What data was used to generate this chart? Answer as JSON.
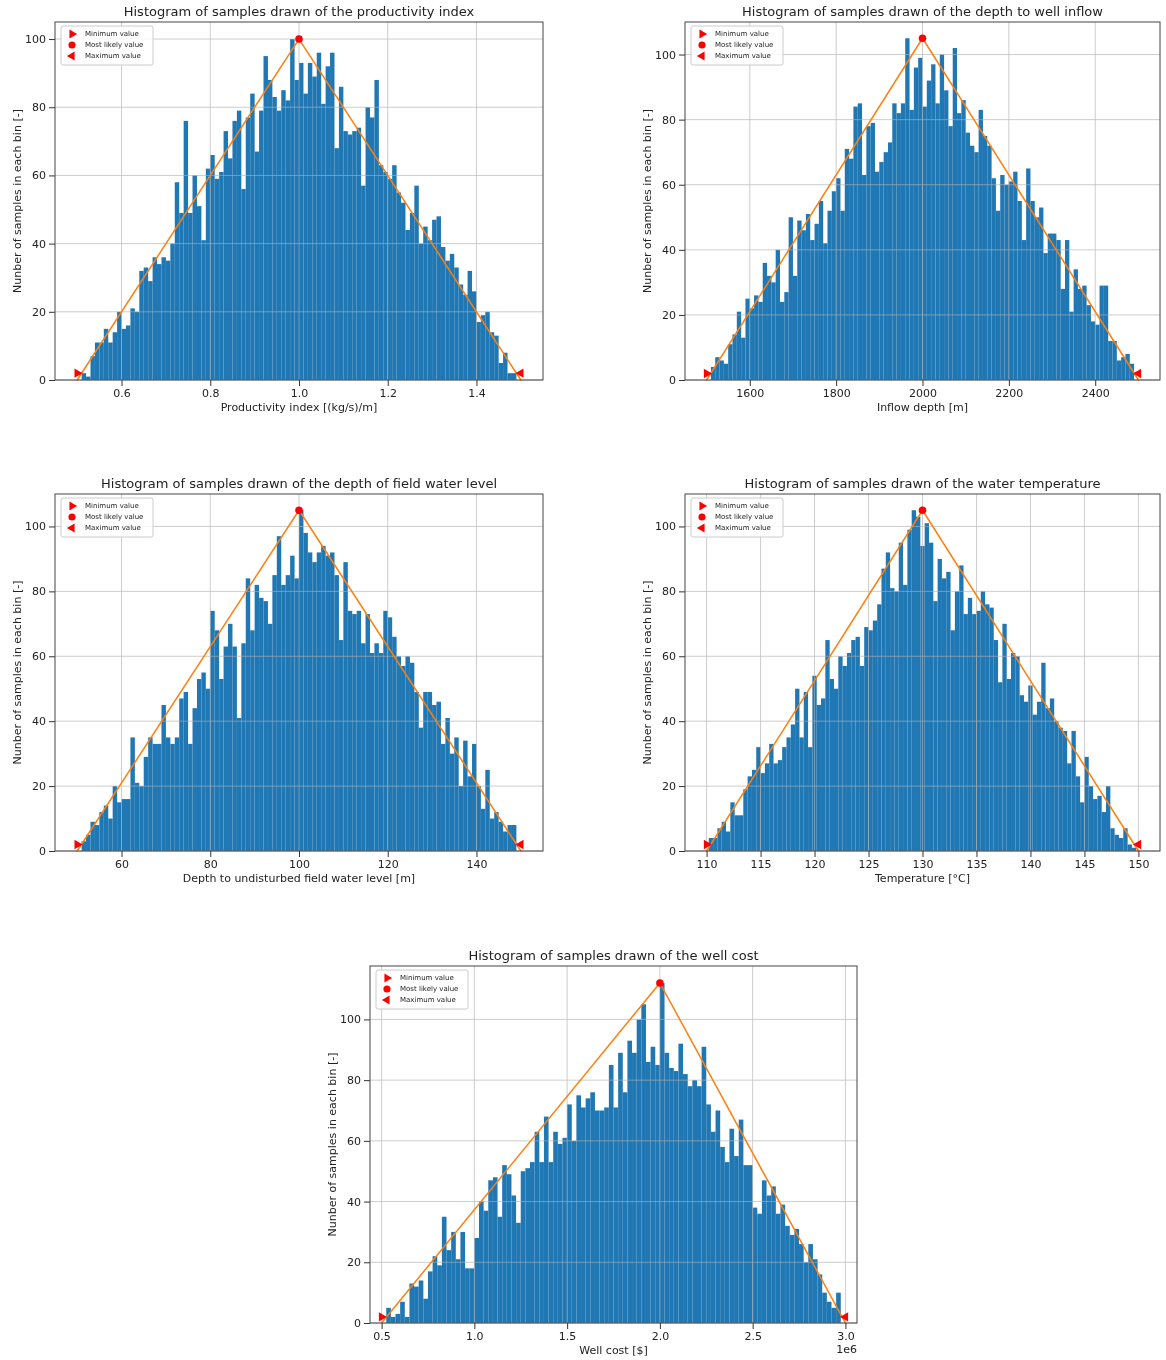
{
  "chart_data": [
    {
      "type": "histogram",
      "title": "Histogram of samples drawn of the productivity index",
      "xlabel": "Productivity index [(kg/s)/m]",
      "ylabel": "Nunber of samples in each bin [-]",
      "xlim": [
        0.45,
        1.55
      ],
      "ylim": [
        0,
        105
      ],
      "xticks": [
        0.6,
        0.8,
        {
          "value": 1,
          "label": "1.0"
        },
        1.2,
        1.4
      ],
      "yticks": [
        0,
        20,
        40,
        60,
        80,
        100
      ],
      "grid": true,
      "legend": "top left",
      "color": "#1f77b4",
      "bins": [
        0.51,
        0.52,
        0.53,
        0.54,
        0.55,
        0.56,
        0.57,
        0.58,
        0.59,
        0.6,
        0.61,
        0.62,
        0.63,
        0.64,
        0.65,
        0.66,
        0.67,
        0.68,
        0.69,
        0.7,
        0.71,
        0.72,
        0.73,
        0.74,
        0.75,
        0.76,
        0.77,
        0.78,
        0.79,
        0.8,
        0.81,
        0.82,
        0.83,
        0.84,
        0.85,
        0.86,
        0.87,
        0.88,
        0.89,
        0.9,
        0.91,
        0.92,
        0.93,
        0.94,
        0.95,
        0.96,
        0.97,
        0.98,
        0.99,
        1,
        1.01,
        1.02,
        1.03,
        1.04,
        1.05,
        1.06,
        1.07,
        1.08,
        1.09,
        1.1,
        1.11,
        1.12,
        1.13,
        1.14,
        1.15,
        1.16,
        1.17,
        1.18,
        1.19,
        1.2,
        1.21,
        1.22,
        1.23,
        1.24,
        1.25,
        1.26,
        1.27,
        1.28,
        1.29,
        1.3,
        1.31,
        1.32,
        1.33,
        1.34,
        1.35,
        1.36,
        1.37,
        1.38,
        1.39,
        1.4,
        1.41,
        1.42,
        1.43,
        1.44,
        1.45,
        1.46,
        1.47,
        1.48,
        1.49
      ],
      "values": [
        2,
        1,
        7,
        11,
        11,
        15,
        11,
        14,
        20,
        15,
        16,
        21,
        20,
        32,
        33,
        29,
        36,
        34,
        36,
        35,
        40,
        58,
        49,
        76,
        49,
        60,
        51,
        41,
        62,
        66,
        59,
        61,
        73,
        65,
        76,
        79,
        56,
        77,
        84,
        67,
        79,
        95,
        88,
        83,
        79,
        85,
        82,
        100,
        88,
        93,
        84,
        93,
        89,
        96,
        81,
        92,
        96,
        68,
        86,
        73,
        72,
        73,
        74,
        57,
        80,
        77,
        88,
        63,
        61,
        59,
        63,
        55,
        52,
        44,
        49,
        57,
        40,
        45,
        41,
        47,
        48,
        39,
        35,
        37,
        33,
        28,
        25,
        32,
        26,
        17,
        19,
        20,
        14,
        13,
        5,
        8,
        2,
        2
      ],
      "series": [
        {
          "type": "line",
          "color": "#ff7f0e",
          "x": [
            0.5,
            1,
            1.5
          ],
          "values": [
            0,
            100,
            0
          ]
        },
        {
          "type": "scatter",
          "name": "Minimum value",
          "color": "#ff0000",
          "marker": "triangle-right",
          "x": [
            0.5
          ],
          "values": [
            2
          ]
        },
        {
          "type": "scatter",
          "name": "Most likely value",
          "color": "#ff0000",
          "marker": "circle",
          "x": [
            1
          ],
          "values": [
            100
          ]
        },
        {
          "type": "scatter",
          "name": "Maximum value",
          "color": "#ff0000",
          "marker": "triangle-left",
          "x": [
            1.5
          ],
          "values": [
            2
          ]
        }
      ]
    },
    {
      "type": "histogram",
      "title": "Histogram of samples drawn of the depth to well inflow",
      "xlabel": "Inflow depth [m]",
      "ylabel": "Nunber of samples in each bin [-]",
      "xlim": [
        1450,
        2550
      ],
      "ylim": [
        0,
        110
      ],
      "xticks": [
        1600,
        1800,
        2000,
        2200,
        2400
      ],
      "yticks": [
        0,
        20,
        40,
        60,
        80,
        100
      ],
      "grid": true,
      "legend": "top left",
      "color": "#1f77b4",
      "bins": [
        1510,
        1520,
        1530,
        1540,
        1550,
        1560,
        1570,
        1580,
        1590,
        1600,
        1610,
        1620,
        1630,
        1640,
        1650,
        1660,
        1670,
        1680,
        1690,
        1700,
        1710,
        1720,
        1730,
        1740,
        1750,
        1760,
        1770,
        1780,
        1790,
        1800,
        1810,
        1820,
        1830,
        1840,
        1850,
        1860,
        1870,
        1880,
        1890,
        1900,
        1910,
        1920,
        1930,
        1940,
        1950,
        1960,
        1970,
        1980,
        1990,
        2000,
        2010,
        2020,
        2030,
        2040,
        2050,
        2060,
        2070,
        2080,
        2090,
        2100,
        2110,
        2120,
        2130,
        2140,
        2150,
        2160,
        2170,
        2180,
        2190,
        2200,
        2210,
        2220,
        2230,
        2240,
        2250,
        2260,
        2270,
        2280,
        2290,
        2300,
        2310,
        2320,
        2330,
        2340,
        2350,
        2360,
        2370,
        2380,
        2390,
        2400,
        2410,
        2420,
        2430,
        2440,
        2450,
        2460,
        2470,
        2480,
        2490
      ],
      "values": [
        4,
        7,
        6,
        5,
        11,
        14,
        21,
        13,
        25,
        22,
        26,
        24,
        36,
        32,
        30,
        40,
        24,
        27,
        50,
        32,
        49,
        46,
        51,
        43,
        48,
        55,
        42,
        52,
        58,
        62,
        52,
        71,
        68,
        84,
        85,
        63,
        78,
        79,
        64,
        67,
        70,
        73,
        85,
        82,
        85,
        105,
        83,
        96,
        99,
        84,
        92,
        97,
        85,
        100,
        89,
        78,
        102,
        82,
        86,
        76,
        72,
        70,
        83,
        75,
        72,
        62,
        52,
        63,
        60,
        61,
        64,
        55,
        43,
        65,
        55,
        50,
        53,
        39,
        45,
        45,
        43,
        28,
        43,
        21,
        34,
        28,
        29,
        23,
        18,
        17,
        29,
        29,
        12,
        12,
        6,
        7,
        8,
        5
      ],
      "series": [
        {
          "type": "line",
          "color": "#ff7f0e",
          "x": [
            1500,
            2000,
            2500
          ],
          "values": [
            0,
            105,
            0
          ]
        },
        {
          "type": "scatter",
          "name": "Minimum value",
          "color": "#ff0000",
          "marker": "triangle-right",
          "x": [
            1500
          ],
          "values": [
            2
          ]
        },
        {
          "type": "scatter",
          "name": "Most likely value",
          "color": "#ff0000",
          "marker": "circle",
          "x": [
            2000
          ],
          "values": [
            105
          ]
        },
        {
          "type": "scatter",
          "name": "Maximum value",
          "color": "#ff0000",
          "marker": "triangle-left",
          "x": [
            2500
          ],
          "values": [
            2
          ]
        }
      ]
    },
    {
      "type": "histogram",
      "title": "Histogram of samples drawn of the depth of field water level",
      "xlabel": "Depth to undisturbed field water level [m]",
      "ylabel": "Nunber of samples in each bin [-]",
      "xlim": [
        45,
        155
      ],
      "ylim": [
        0,
        110
      ],
      "xticks": [
        60,
        80,
        100,
        120,
        140
      ],
      "yticks": [
        0,
        20,
        40,
        60,
        80,
        100
      ],
      "grid": true,
      "legend": "top left",
      "color": "#1f77b4",
      "bins": [
        51,
        52,
        53,
        54,
        55,
        56,
        57,
        58,
        59,
        60,
        61,
        62,
        63,
        64,
        65,
        66,
        67,
        68,
        69,
        70,
        71,
        72,
        73,
        74,
        75,
        76,
        77,
        78,
        79,
        80,
        81,
        82,
        83,
        84,
        85,
        86,
        87,
        88,
        89,
        90,
        91,
        92,
        93,
        94,
        95,
        96,
        97,
        98,
        99,
        100,
        101,
        102,
        103,
        104,
        105,
        106,
        107,
        108,
        109,
        110,
        111,
        112,
        113,
        114,
        115,
        116,
        117,
        118,
        119,
        120,
        121,
        122,
        123,
        124,
        125,
        126,
        127,
        128,
        129,
        130,
        131,
        132,
        133,
        134,
        135,
        136,
        137,
        138,
        139,
        140,
        141,
        142,
        143,
        144,
        145,
        146,
        147,
        148,
        149
      ],
      "values": [
        3,
        5,
        9,
        8,
        12,
        14,
        10,
        20,
        15,
        16,
        16,
        35,
        21,
        20,
        29,
        35,
        33,
        33,
        45,
        35,
        33,
        35,
        47,
        49,
        33,
        44,
        53,
        55,
        50,
        74,
        68,
        53,
        63,
        70,
        63,
        41,
        64,
        84,
        68,
        82,
        78,
        77,
        70,
        85,
        97,
        82,
        85,
        91,
        84,
        105,
        98,
        92,
        89,
        92,
        94,
        91,
        92,
        85,
        65,
        89,
        74,
        73,
        74,
        64,
        73,
        61,
        64,
        61,
        74,
        72,
        66,
        60,
        57,
        60,
        58,
        49,
        38,
        49,
        49,
        45,
        46,
        33,
        41,
        30,
        35,
        20,
        34,
        23,
        33,
        20,
        13,
        25,
        10,
        12,
        9,
        6,
        8,
        8
      ],
      "series": [
        {
          "type": "line",
          "color": "#ff7f0e",
          "x": [
            50,
            100,
            150
          ],
          "values": [
            0,
            105,
            0
          ]
        },
        {
          "type": "scatter",
          "name": "Minimum value",
          "color": "#ff0000",
          "marker": "triangle-right",
          "x": [
            50
          ],
          "values": [
            2
          ]
        },
        {
          "type": "scatter",
          "name": "Most likely value",
          "color": "#ff0000",
          "marker": "circle",
          "x": [
            100
          ],
          "values": [
            105
          ]
        },
        {
          "type": "scatter",
          "name": "Maximum value",
          "color": "#ff0000",
          "marker": "triangle-left",
          "x": [
            150
          ],
          "values": [
            2
          ]
        }
      ]
    },
    {
      "type": "histogram",
      "title": "Histogram of samples drawn of the water temperature",
      "xlabel": "Temperature [°C]",
      "ylabel": "Nunber of samples in each bin [-]",
      "xlim": [
        108,
        152
      ],
      "ylim": [
        0,
        110
      ],
      "xticks": [
        110,
        115,
        120,
        125,
        130,
        135,
        140,
        145,
        150
      ],
      "yticks": [
        0,
        20,
        40,
        60,
        80,
        100
      ],
      "grid": true,
      "legend": "top left",
      "color": "#1f77b4",
      "bins": [
        110.2,
        110.6,
        111,
        111.4,
        111.8,
        112.2,
        112.6,
        113,
        113.4,
        113.8,
        114.2,
        114.6,
        115,
        115.4,
        115.8,
        116.2,
        116.6,
        117,
        117.4,
        117.8,
        118.2,
        118.6,
        119,
        119.4,
        119.8,
        120.2,
        120.6,
        121,
        121.4,
        121.8,
        122.2,
        122.6,
        123,
        123.4,
        123.8,
        124.2,
        124.6,
        125,
        125.4,
        125.8,
        126.2,
        126.6,
        127,
        127.4,
        127.8,
        128.2,
        128.6,
        129,
        129.4,
        129.8,
        130.2,
        130.6,
        131,
        131.4,
        131.8,
        132.2,
        132.6,
        133,
        133.4,
        133.8,
        134.2,
        134.6,
        135,
        135.4,
        135.8,
        136.2,
        136.6,
        137,
        137.4,
        137.8,
        138.2,
        138.6,
        139,
        139.4,
        139.8,
        140.2,
        140.6,
        141,
        141.4,
        141.8,
        142.2,
        142.6,
        143,
        143.4,
        143.8,
        144.2,
        144.6,
        145,
        145.4,
        145.8,
        146.2,
        146.6,
        147,
        147.4,
        147.8,
        148.2,
        148.6,
        149,
        149.4,
        149.8
      ],
      "values": [
        4,
        4,
        7,
        9,
        6,
        15,
        11,
        11,
        19,
        23,
        25,
        32,
        24,
        27,
        33,
        27,
        28,
        32,
        35,
        39,
        50,
        35,
        49,
        32,
        54,
        45,
        47,
        65,
        53,
        50,
        60,
        57,
        61,
        65,
        66,
        57,
        69,
        68,
        71,
        76,
        87,
        92,
        81,
        80,
        95,
        82,
        99,
        105,
        103,
        94,
        101,
        95,
        77,
        90,
        84,
        86,
        68,
        80,
        88,
        73,
        78,
        73,
        74,
        80,
        76,
        75,
        65,
        52,
        70,
        53,
        61,
        60,
        48,
        46,
        51,
        42,
        46,
        58,
        44,
        47,
        40,
        38,
        37,
        27,
        37,
        23,
        15,
        29,
        20,
        16,
        17,
        12,
        20,
        7,
        5,
        4,
        7,
        2,
        1
      ],
      "series": [
        {
          "type": "line",
          "color": "#ff7f0e",
          "x": [
            110,
            130,
            150
          ],
          "values": [
            0,
            105,
            0
          ]
        },
        {
          "type": "scatter",
          "name": "Minimum value",
          "color": "#ff0000",
          "marker": "triangle-right",
          "x": [
            110
          ],
          "values": [
            2
          ]
        },
        {
          "type": "scatter",
          "name": "Most likely value",
          "color": "#ff0000",
          "marker": "circle",
          "x": [
            130
          ],
          "values": [
            105
          ]
        },
        {
          "type": "scatter",
          "name": "Maximum value",
          "color": "#ff0000",
          "marker": "triangle-left",
          "x": [
            150
          ],
          "values": [
            2
          ]
        }
      ]
    },
    {
      "type": "histogram",
      "title": "Histogram of samples drawn of the well cost",
      "xlabel": "Well cost [$]",
      "ylabel": "Nunber of samples in each bin [-]",
      "annotations": [
        "1e6"
      ],
      "xlim": [
        0.4375,
        3.0625
      ],
      "ylim": [
        0,
        117.6
      ],
      "xticks": [
        0.5,
        {
          "value": 1,
          "label": "1.0"
        },
        1.5,
        {
          "value": 2,
          "label": "2.0"
        },
        2.5,
        {
          "value": 3,
          "label": "3.0"
        }
      ],
      "yticks": [
        0,
        20,
        40,
        60,
        80,
        100
      ],
      "grid": true,
      "legend": "top left",
      "color": "#1f77b4",
      "bins": [
        0.525,
        0.55,
        0.575,
        0.6,
        0.625,
        0.65,
        0.675,
        0.7,
        0.725,
        0.75,
        0.775,
        0.8,
        0.825,
        0.85,
        0.875,
        0.9,
        0.925,
        0.95,
        0.975,
        1,
        1.025,
        1.05,
        1.075,
        1.1,
        1.125,
        1.15,
        1.175,
        1.2,
        1.225,
        1.25,
        1.275,
        1.3,
        1.325,
        1.35,
        1.375,
        1.4,
        1.425,
        1.45,
        1.475,
        1.5,
        1.525,
        1.55,
        1.575,
        1.6,
        1.625,
        1.65,
        1.675,
        1.7,
        1.725,
        1.75,
        1.775,
        1.8,
        1.825,
        1.85,
        1.875,
        1.9,
        1.925,
        1.95,
        1.975,
        2,
        2.025,
        2.05,
        2.075,
        2.1,
        2.125,
        2.15,
        2.175,
        2.2,
        2.225,
        2.25,
        2.275,
        2.3,
        2.325,
        2.35,
        2.375,
        2.4,
        2.425,
        2.45,
        2.475,
        2.5,
        2.525,
        2.55,
        2.575,
        2.6,
        2.625,
        2.65,
        2.675,
        2.7,
        2.725,
        2.75,
        2.775,
        2.8,
        2.825,
        2.85,
        2.875,
        2.9,
        2.925,
        2.95,
        2.975
      ],
      "values": [
        5,
        2,
        3,
        7,
        2,
        13,
        12,
        14,
        8,
        17,
        22,
        19,
        35,
        24,
        30,
        21,
        30,
        18,
        18,
        28,
        40,
        37,
        47,
        48,
        35,
        52,
        49,
        42,
        33,
        50,
        51,
        53,
        63,
        53,
        68,
        53,
        63,
        59,
        61,
        72,
        60,
        75,
        71,
        74,
        76,
        70,
        70,
        71,
        85,
        71,
        89,
        76,
        93,
        89,
        100,
        105,
        86,
        91,
        85,
        112,
        89,
        84,
        83,
        92,
        82,
        78,
        80,
        78,
        91,
        72,
        63,
        70,
        58,
        53,
        64,
        55,
        67,
        52,
        52,
        38,
        36,
        47,
        42,
        45,
        36,
        39,
        32,
        29,
        31,
        26,
        20,
        26,
        21,
        16,
        10,
        7,
        5,
        10
      ],
      "series": [
        {
          "type": "line",
          "color": "#ff7f0e",
          "x": [
            0.5,
            2,
            3
          ],
          "values": [
            0,
            112,
            0
          ]
        },
        {
          "type": "scatter",
          "name": "Minimum value",
          "color": "#ff0000",
          "marker": "triangle-right",
          "x": [
            0.5
          ],
          "values": [
            2
          ]
        },
        {
          "type": "scatter",
          "name": "Most likely value",
          "color": "#ff0000",
          "marker": "circle",
          "x": [
            2
          ],
          "values": [
            112
          ]
        },
        {
          "type": "scatter",
          "name": "Maximum value",
          "color": "#ff0000",
          "marker": "triangle-left",
          "x": [
            3
          ],
          "values": [
            2
          ]
        }
      ]
    }
  ]
}
